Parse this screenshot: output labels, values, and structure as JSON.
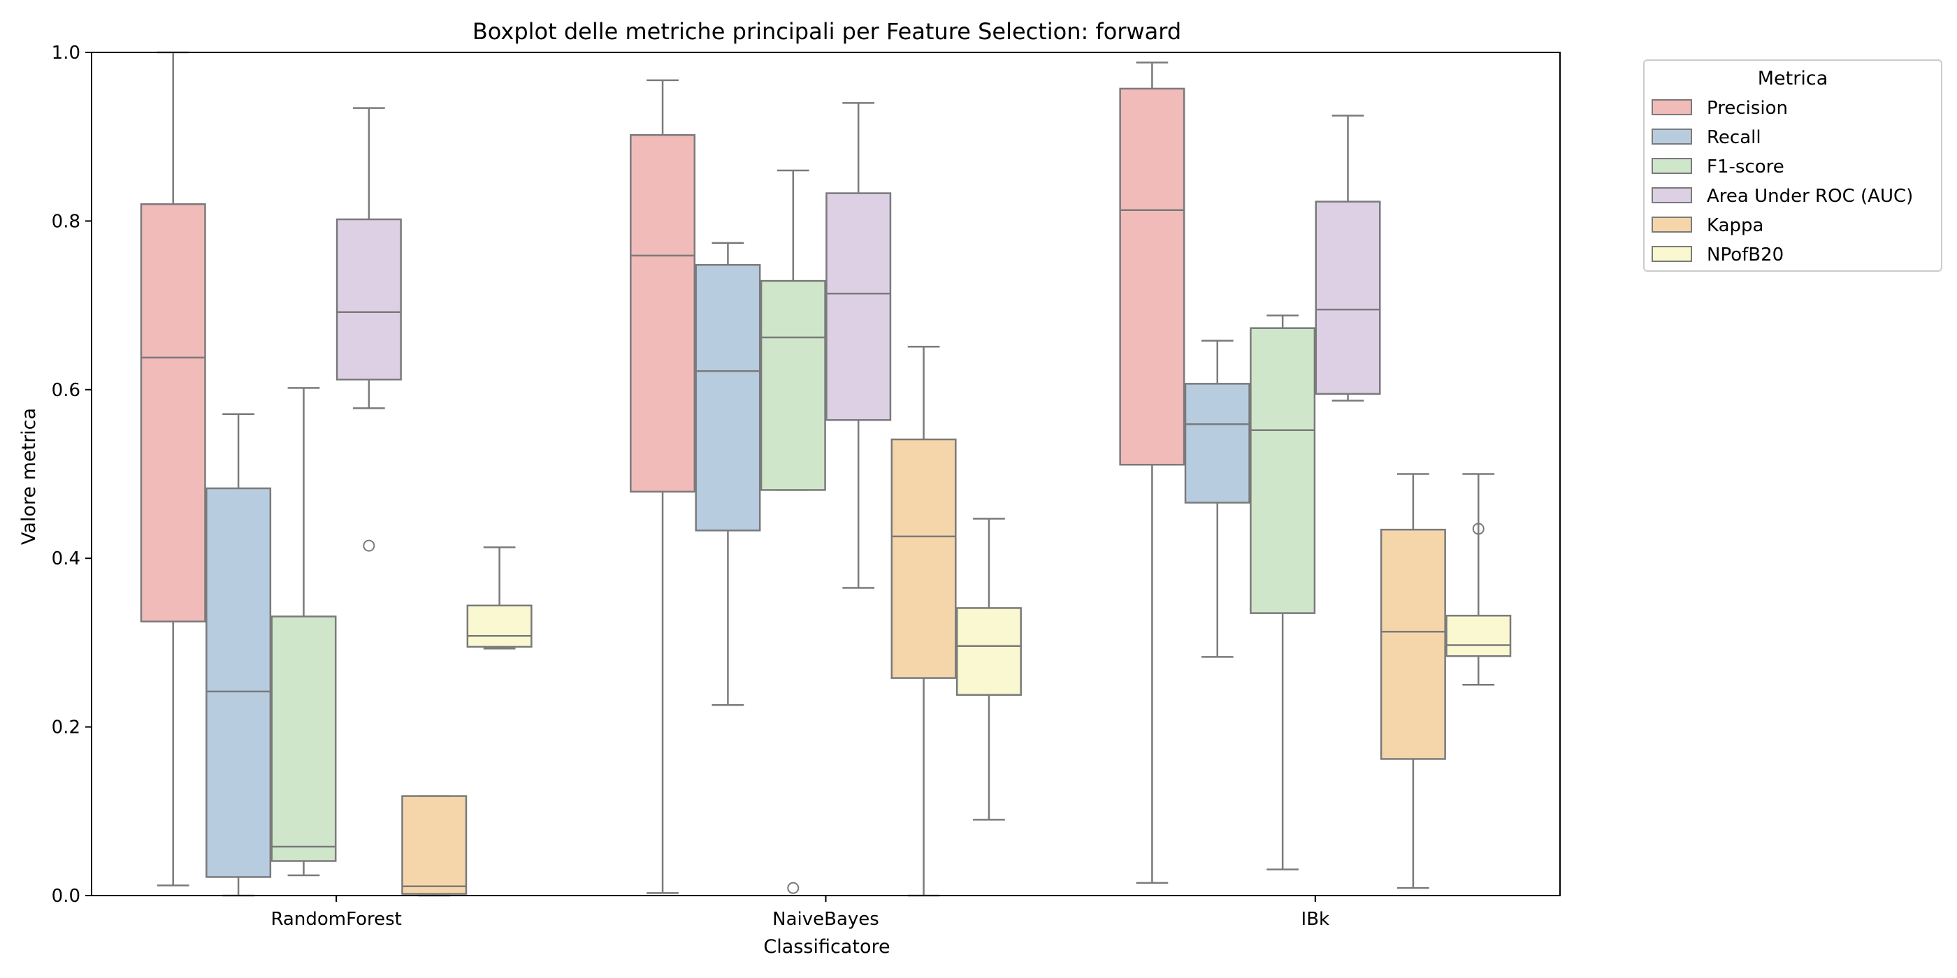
{
  "chart_data": {
    "type": "boxplot",
    "title": "Boxplot delle metriche principali per Feature Selection: forward",
    "xlabel": "Classificatore",
    "ylabel": "Valore metrica",
    "ylim": [
      0,
      1
    ],
    "yticks": [
      "0.0",
      "0.2",
      "0.4",
      "0.6",
      "0.8",
      "1.0"
    ],
    "categories": [
      "RandomForest",
      "NaiveBayes",
      "IBk"
    ],
    "legend": {
      "title": "Metrica",
      "position": "outside-top-right"
    },
    "colors": {
      "box_edge": "#7a7a7a",
      "Precision": "#f1bbba",
      "Recall": "#b8cce0",
      "F1-score": "#cfe6cb",
      "Area Under ROC (AUC)": "#ddd0e4",
      "Kappa": "#f5d6aa",
      "NPofB20": "#f9f8d0"
    },
    "series": [
      {
        "name": "Precision",
        "boxes": [
          {
            "whislo": 0.012,
            "q1": 0.325,
            "med": 0.638,
            "q3": 0.82,
            "whishi": 1.0,
            "fliers": []
          },
          {
            "whislo": 0.003,
            "q1": 0.479,
            "med": 0.759,
            "q3": 0.902,
            "whishi": 0.967,
            "fliers": []
          },
          {
            "whislo": 0.015,
            "q1": 0.511,
            "med": 0.813,
            "q3": 0.957,
            "whishi": 0.988,
            "fliers": []
          }
        ]
      },
      {
        "name": "Recall",
        "boxes": [
          {
            "whislo": 0.0,
            "q1": 0.022,
            "med": 0.242,
            "q3": 0.483,
            "whishi": 0.571,
            "fliers": []
          },
          {
            "whislo": 0.226,
            "q1": 0.433,
            "med": 0.622,
            "q3": 0.748,
            "whishi": 0.774,
            "fliers": []
          },
          {
            "whislo": 0.283,
            "q1": 0.466,
            "med": 0.559,
            "q3": 0.607,
            "whishi": 0.658,
            "fliers": []
          }
        ]
      },
      {
        "name": "F1-score",
        "boxes": [
          {
            "whislo": 0.024,
            "q1": 0.041,
            "med": 0.058,
            "q3": 0.331,
            "whishi": 0.602,
            "fliers": []
          },
          {
            "whislo": 0.481,
            "q1": 0.481,
            "med": 0.662,
            "q3": 0.729,
            "whishi": 0.86,
            "fliers": [
              0.009
            ]
          },
          {
            "whislo": 0.031,
            "q1": 0.335,
            "med": 0.552,
            "q3": 0.673,
            "whishi": 0.688,
            "fliers": []
          }
        ]
      },
      {
        "name": "Area Under ROC (AUC)",
        "boxes": [
          {
            "whislo": 0.578,
            "q1": 0.612,
            "med": 0.692,
            "q3": 0.802,
            "whishi": 0.934,
            "fliers": [
              0.415
            ]
          },
          {
            "whislo": 0.365,
            "q1": 0.564,
            "med": 0.714,
            "q3": 0.833,
            "whishi": 0.94,
            "fliers": []
          },
          {
            "whislo": 0.587,
            "q1": 0.595,
            "med": 0.695,
            "q3": 0.823,
            "whishi": 0.925,
            "fliers": []
          }
        ]
      },
      {
        "name": "Kappa",
        "boxes": [
          {
            "whislo": 0.0,
            "q1": 0.002,
            "med": 0.011,
            "q3": 0.118,
            "whishi": 0.118,
            "fliers": []
          },
          {
            "whislo": 0.0,
            "q1": 0.258,
            "med": 0.426,
            "q3": 0.541,
            "whishi": 0.651,
            "fliers": []
          },
          {
            "whislo": 0.009,
            "q1": 0.162,
            "med": 0.313,
            "q3": 0.434,
            "whishi": 0.5,
            "fliers": []
          }
        ]
      },
      {
        "name": "NPofB20",
        "boxes": [
          {
            "whislo": 0.293,
            "q1": 0.295,
            "med": 0.308,
            "q3": 0.344,
            "whishi": 0.413,
            "fliers": []
          },
          {
            "whislo": 0.09,
            "q1": 0.238,
            "med": 0.296,
            "q3": 0.341,
            "whishi": 0.447,
            "fliers": []
          },
          {
            "whislo": 0.25,
            "q1": 0.284,
            "med": 0.297,
            "q3": 0.332,
            "whishi": 0.5,
            "fliers": [
              0.435
            ]
          }
        ]
      }
    ]
  }
}
